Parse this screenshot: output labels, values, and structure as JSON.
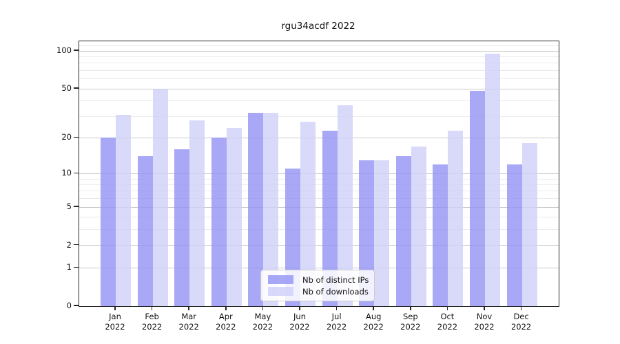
{
  "chart_data": {
    "type": "bar",
    "title": "rgu34acdf 2022",
    "categories": [
      "Jan",
      "Feb",
      "Mar",
      "Apr",
      "May",
      "Jun",
      "Jul",
      "Aug",
      "Sep",
      "Oct",
      "Nov",
      "Dec"
    ],
    "category_year": "2022",
    "series": [
      {
        "name": "Nb of distinct IPs",
        "color": "#9292f5",
        "fill_opacity": 0.8,
        "apparent_color": "#a8a8f8",
        "values": [
          20,
          14,
          16,
          20,
          32,
          11,
          23,
          13,
          14,
          12,
          48,
          12
        ]
      },
      {
        "name": "Nb of downloads",
        "color": "#cfcff9",
        "fill_opacity": 0.8,
        "apparent_color": "#d9d9f9",
        "values": [
          31,
          50,
          28,
          24,
          32,
          27,
          37,
          13,
          17,
          23,
          95,
          18
        ]
      }
    ],
    "xlabel": "",
    "ylabel": "",
    "yscale": "log1p",
    "ylim": [
      0,
      118
    ],
    "yticks_major": [
      0,
      1,
      2,
      5,
      10,
      20,
      50,
      100
    ],
    "yticks_minor": [
      3,
      4,
      6,
      7,
      8,
      9,
      30,
      40,
      60,
      70,
      80,
      90,
      110
    ],
    "grid": "both",
    "legend": {
      "position": "lower center",
      "frame": true
    }
  },
  "style": {
    "major_grid_color": "#c9c9c9",
    "minor_grid_color": "#eaeaea",
    "spine_color": "#262626",
    "text_color": "#111111",
    "background": "#ffffff"
  }
}
